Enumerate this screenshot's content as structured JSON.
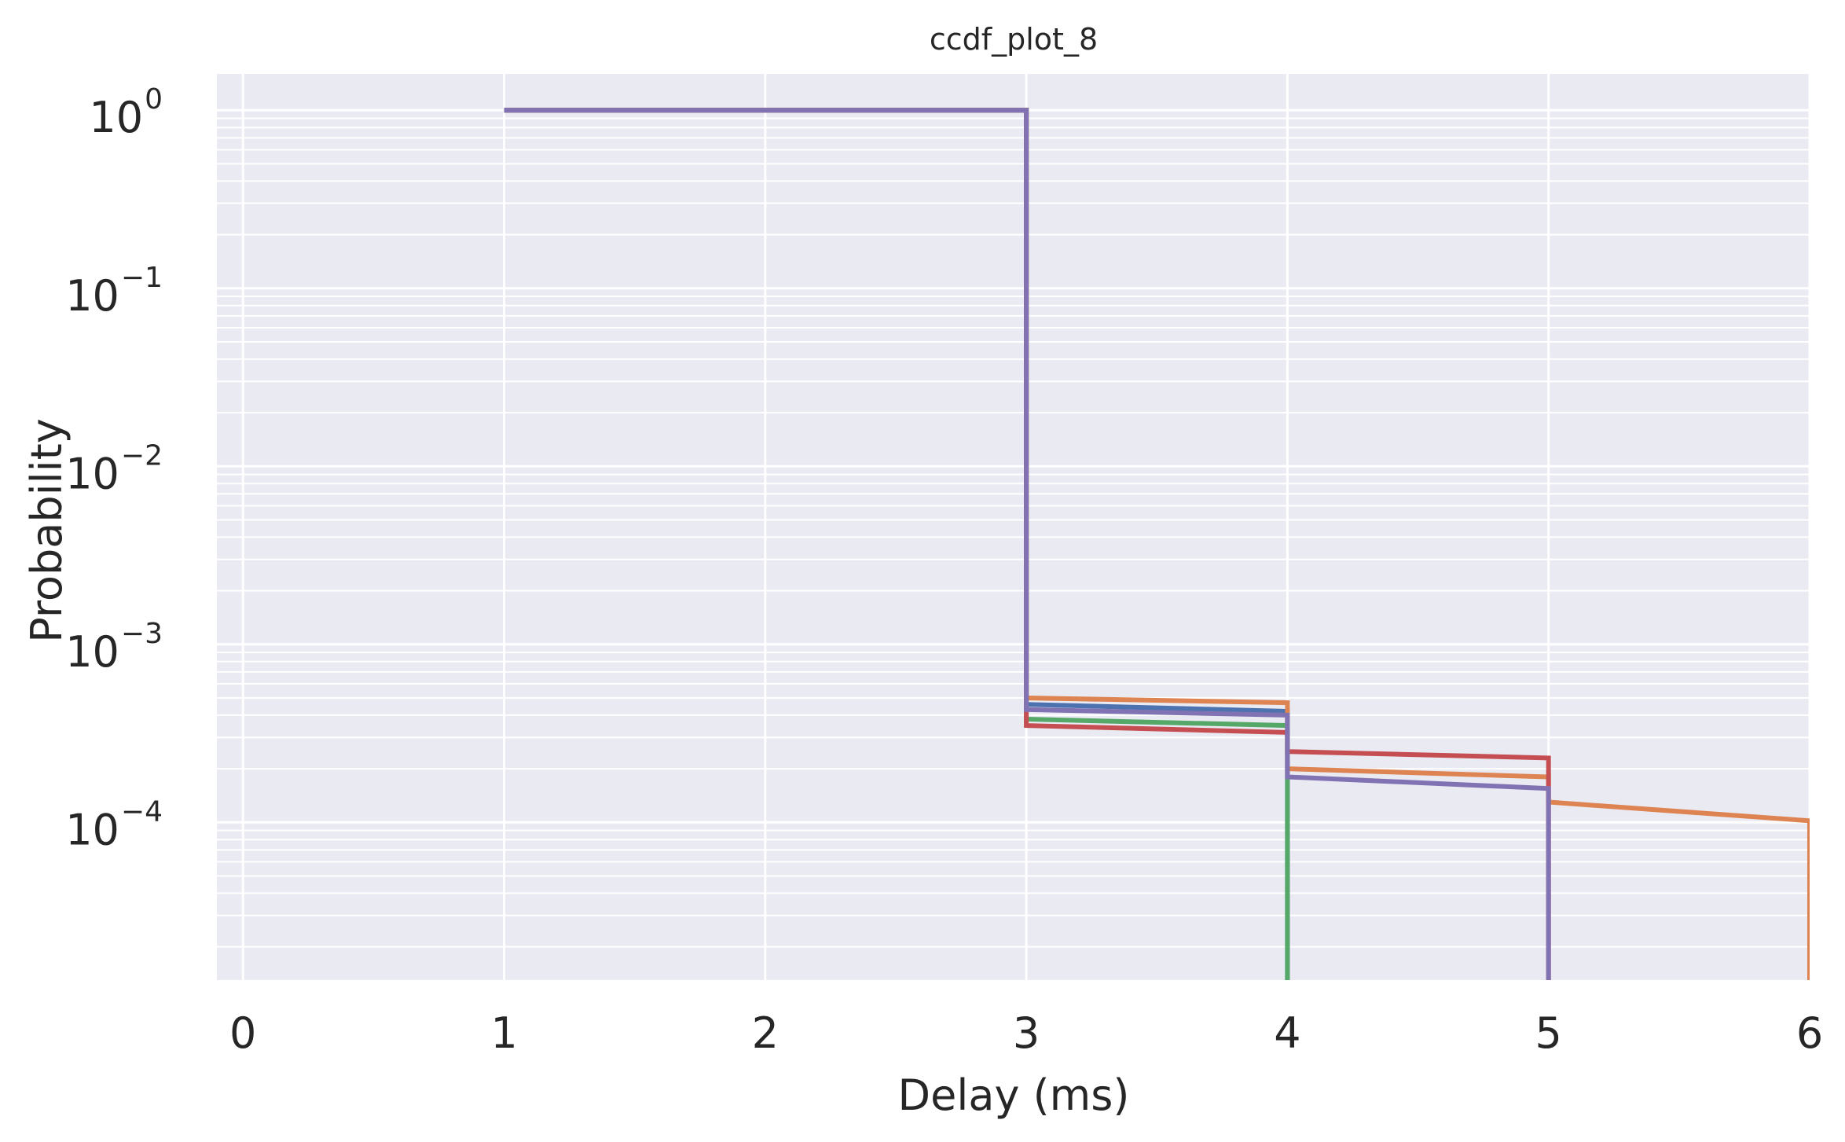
{
  "chart_data": {
    "type": "line",
    "title": "ccdf_plot_8",
    "xlabel": "Delay (ms)",
    "ylabel": "Probability",
    "xlim": [
      -0.1,
      6.0
    ],
    "ylim": [
      1.3e-05,
      1.6
    ],
    "xscale": "linear",
    "yscale": "log",
    "grid": true,
    "legend": "none",
    "x_ticks": [
      0,
      1,
      2,
      3,
      4,
      5,
      6
    ],
    "x_tick_labels": [
      "0",
      "1",
      "2",
      "3",
      "4",
      "5",
      "6"
    ],
    "y_ticks": [
      1,
      0.1,
      0.01,
      0.001,
      0.0001
    ],
    "y_tick_labels": [
      {
        "base": "10",
        "exp": "0"
      },
      {
        "base": "10",
        "exp": "−1"
      },
      {
        "base": "10",
        "exp": "−2"
      },
      {
        "base": "10",
        "exp": "−3"
      },
      {
        "base": "10",
        "exp": "−4"
      }
    ],
    "series": [
      {
        "color": "#4C72B0",
        "x": [
          1,
          3,
          3,
          4,
          4
        ],
        "y": [
          1,
          1,
          0.00046,
          0.00042,
          0
        ]
      },
      {
        "color": "#DD8452",
        "x": [
          1,
          3,
          3,
          4,
          4,
          5,
          5,
          6,
          6
        ],
        "y": [
          1,
          1,
          0.0005,
          0.00047,
          0.0002,
          0.00018,
          0.00013,
          0.000102,
          0
        ]
      },
      {
        "color": "#55A868",
        "x": [
          1,
          3,
          3,
          4,
          4
        ],
        "y": [
          1,
          1,
          0.00038,
          0.00035,
          0
        ]
      },
      {
        "color": "#C44E52",
        "x": [
          1,
          3,
          3,
          4,
          4,
          5,
          5
        ],
        "y": [
          1,
          1,
          0.00035,
          0.00032,
          0.00025,
          0.00023,
          0
        ]
      },
      {
        "color": "#8172B3",
        "x": [
          1,
          3,
          3,
          4,
          4,
          5,
          5
        ],
        "y": [
          1,
          1,
          0.00043,
          0.0004,
          0.00018,
          0.000155,
          0
        ]
      }
    ]
  }
}
